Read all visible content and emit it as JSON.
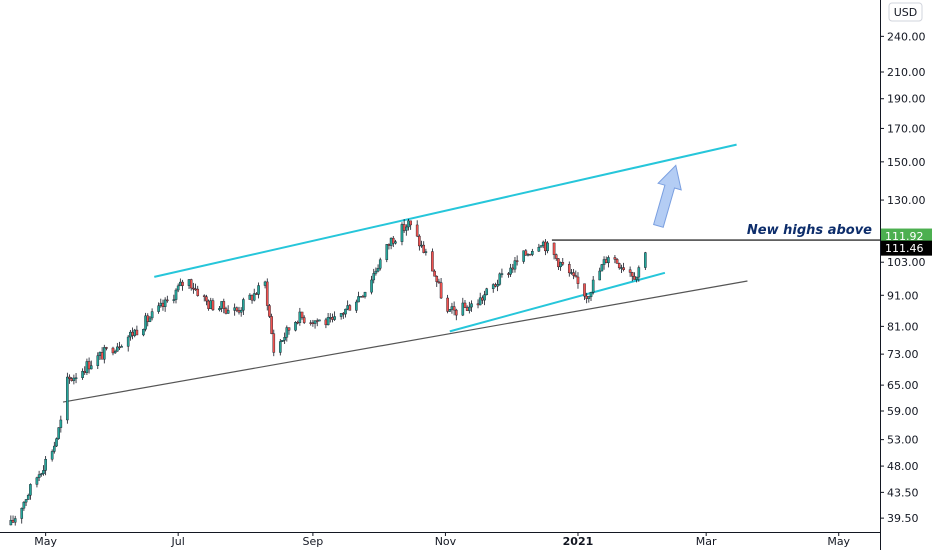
{
  "chart_data": {
    "type": "candlestick",
    "currency_label": "USD",
    "y_scale": "log",
    "y_ticks": [
      39.5,
      43.5,
      48.0,
      53.0,
      59.0,
      65.0,
      73.0,
      81.0,
      91.0,
      103.0,
      115.0,
      130.0,
      150.0,
      170.0,
      190.0,
      210.0,
      240.0
    ],
    "y_tick_labels": [
      "39.50",
      "43.50",
      "48.00",
      "53.00",
      "59.00",
      "65.00",
      "73.00",
      "81.00",
      "91.00",
      "103.00",
      "115.00",
      "130.00",
      "150.00",
      "170.00",
      "190.00",
      "210.00",
      "240.00"
    ],
    "x_ticks": [
      {
        "date": "2020-05-01",
        "label": "May",
        "bold": false
      },
      {
        "date": "2020-07-01",
        "label": "Jul",
        "bold": false
      },
      {
        "date": "2020-09-01",
        "label": "Sep",
        "bold": false
      },
      {
        "date": "2020-11-01",
        "label": "Nov",
        "bold": false
      },
      {
        "date": "2021-01-01",
        "label": "2021",
        "bold": true
      },
      {
        "date": "2021-03-01",
        "label": "Mar",
        "bold": false
      },
      {
        "date": "2021-05-01",
        "label": "May",
        "bold": false
      }
    ],
    "x_range": [
      "2020-04-10",
      "2021-05-20"
    ],
    "y_range": [
      37.5,
      275
    ],
    "grid": false,
    "key_points": [
      {
        "date": "2020-04-15",
        "close": 38.5
      },
      {
        "date": "2020-05-05",
        "close": 52.0
      },
      {
        "date": "2020-05-08",
        "close": 56.5
      },
      {
        "date": "2020-05-09",
        "close": 65.0
      },
      {
        "date": "2020-05-20",
        "close": 70.0
      },
      {
        "date": "2020-06-10",
        "close": 79.0
      },
      {
        "date": "2020-06-25",
        "close": 88.0
      },
      {
        "date": "2020-07-05",
        "close": 97.0
      },
      {
        "date": "2020-07-15",
        "close": 88.0
      },
      {
        "date": "2020-07-28",
        "close": 86.0
      },
      {
        "date": "2020-08-10",
        "close": 95.0
      },
      {
        "date": "2020-08-14",
        "close": 74.0
      },
      {
        "date": "2020-08-25",
        "close": 84.0
      },
      {
        "date": "2020-09-10",
        "close": 82.0
      },
      {
        "date": "2020-09-25",
        "close": 93.0
      },
      {
        "date": "2020-10-07",
        "close": 112.0
      },
      {
        "date": "2020-10-15",
        "close": 119.0
      },
      {
        "date": "2020-10-25",
        "close": 103.0
      },
      {
        "date": "2020-11-02",
        "close": 85.0
      },
      {
        "date": "2020-11-15",
        "close": 88.0
      },
      {
        "date": "2020-11-30",
        "close": 100.0
      },
      {
        "date": "2020-12-15",
        "close": 112.0
      },
      {
        "date": "2021-01-05",
        "close": 91.0
      },
      {
        "date": "2021-01-15",
        "close": 106.0
      },
      {
        "date": "2021-01-28",
        "close": 98.0
      },
      {
        "date": "2021-02-02",
        "close": 111.46
      }
    ],
    "last_price": 111.46,
    "last_price_label": "111.46",
    "level_price": 111.92,
    "level_price_label": "111.92",
    "annotation": "New highs above",
    "trendlines": [
      {
        "color": "#26c6da",
        "from": {
          "date": "2020-06-20",
          "price": 97.5
        },
        "to": {
          "date": "2021-03-15",
          "price": 160.0
        }
      },
      {
        "color": "#26c6da",
        "from": {
          "date": "2020-11-03",
          "price": 79.5
        },
        "to": {
          "date": "2021-02-10",
          "price": 99.0
        }
      },
      {
        "color": "#555555",
        "from": {
          "date": "2020-05-09",
          "price": 61.0
        },
        "to": {
          "date": "2021-03-20",
          "price": 96.0
        }
      },
      {
        "color": "#000000",
        "from": {
          "date": "2020-12-20",
          "price": 111.92
        },
        "to": {
          "date": "2021-05-20",
          "price": 111.92
        }
      }
    ],
    "arrow": {
      "from": {
        "date": "2021-02-07",
        "price": 118.0
      },
      "to": {
        "date": "2021-02-15",
        "price": 148.0
      }
    },
    "colors": {
      "up": "#26a69a",
      "down": "#ef5350",
      "channel": "#26c6da",
      "support": "#555555",
      "level": "#000000",
      "arrow": "#a7c4f2",
      "annotation": "#0d2d6b",
      "last_price_bg": "#000000",
      "level_bg": "#4caf50"
    }
  }
}
